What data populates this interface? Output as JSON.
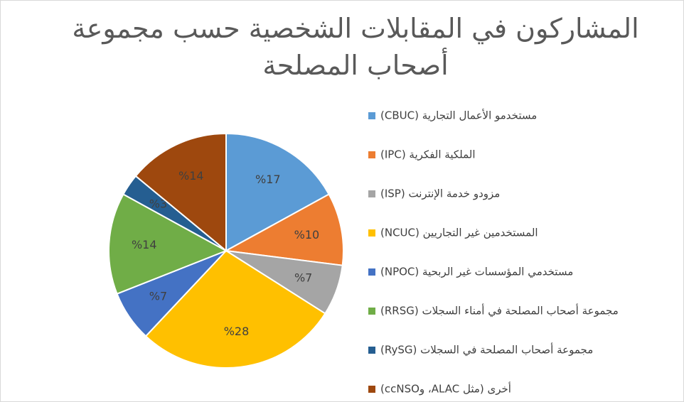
{
  "chart_data": {
    "type": "pie",
    "title": "المشاركون في المقابلات الشخصية حسب مجموعة أصحاب المصلحة",
    "categories": [
      "مستخدمو الأعمال التجارية  (CBUC)",
      "الملكية الفكرية (IPC)",
      "مزودو خدمة الإنترنت (ISP)",
      "المستخدمين غير التجاريين (NCUC)",
      "مستخدمي المؤسسات غير الربحية (NPOC)",
      "مجموعة أصحاب المصلحة في أمناء السجلات (RRSG)",
      "مجموعة أصحاب المصلحة في السجلات (RySG)",
      "أخرى (مثل ALAC، وccNSO)"
    ],
    "values": [
      17,
      10,
      7,
      28,
      7,
      14,
      3,
      14
    ],
    "value_labels": [
      "%17",
      "%10",
      "%7",
      "%28",
      "%7",
      "%14",
      "%3",
      "%14"
    ],
    "colors": [
      "#5b9bd5",
      "#ed7d31",
      "#a5a5a5",
      "#ffc000",
      "#4472c4",
      "#70ad47",
      "#255e91",
      "#9e480e"
    ],
    "legend": "right"
  }
}
